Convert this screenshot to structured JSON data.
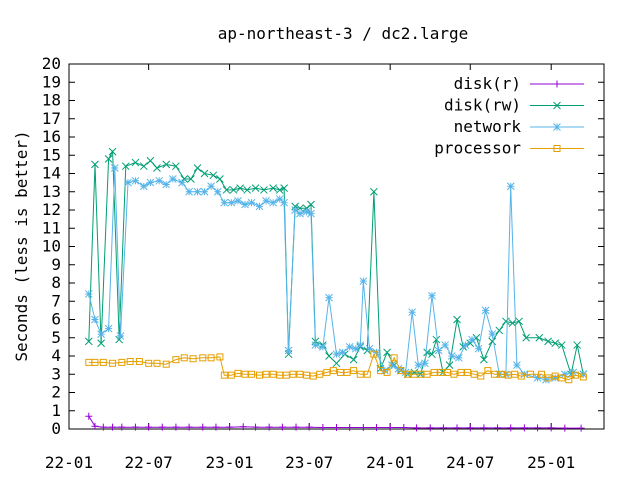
{
  "chart_data": {
    "type": "line",
    "title": "ap-northeast-3 / dc2.large",
    "ylabel": "Seconds (less is better)",
    "xlabel": "",
    "ylim": [
      0,
      20
    ],
    "xlim": [
      "2022-01-01",
      "2025-05-01"
    ],
    "yticks": [
      0,
      1,
      2,
      3,
      4,
      5,
      6,
      7,
      8,
      9,
      10,
      11,
      12,
      13,
      14,
      15,
      16,
      17,
      18,
      19,
      20
    ],
    "xticks": [
      "2022-01-01",
      "2022-07-01",
      "2023-01-01",
      "2023-07-01",
      "2024-01-01",
      "2024-07-01",
      "2025-01-01"
    ],
    "xtick_labels": [
      "22-01",
      "22-07",
      "23-01",
      "23-07",
      "24-01",
      "24-07",
      "25-01"
    ],
    "grid": false,
    "legend_position": "top-right",
    "series": [
      {
        "name": "disk(r)",
        "color": "#9400d3",
        "marker": "plus",
        "points": [
          [
            "2022-02-15",
            0.7
          ],
          [
            "2022-03-01",
            0.15
          ],
          [
            "2022-03-20",
            0.1
          ],
          [
            "2022-04-10",
            0.1
          ],
          [
            "2022-05-01",
            0.1
          ],
          [
            "2022-06-01",
            0.1
          ],
          [
            "2022-07-01",
            0.1
          ],
          [
            "2022-08-01",
            0.1
          ],
          [
            "2022-09-01",
            0.1
          ],
          [
            "2022-10-01",
            0.1
          ],
          [
            "2022-11-01",
            0.1
          ],
          [
            "2022-12-01",
            0.1
          ],
          [
            "2023-01-01",
            0.1
          ],
          [
            "2023-02-01",
            0.12
          ],
          [
            "2023-03-01",
            0.1
          ],
          [
            "2023-04-01",
            0.1
          ],
          [
            "2023-05-01",
            0.1
          ],
          [
            "2023-06-01",
            0.1
          ],
          [
            "2023-07-01",
            0.1
          ],
          [
            "2023-08-01",
            0.08
          ],
          [
            "2023-09-01",
            0.08
          ],
          [
            "2023-10-01",
            0.08
          ],
          [
            "2023-11-01",
            0.08
          ],
          [
            "2023-12-01",
            0.08
          ],
          [
            "2024-01-01",
            0.08
          ],
          [
            "2024-02-01",
            0.08
          ],
          [
            "2024-03-01",
            0.06
          ],
          [
            "2024-04-01",
            0.06
          ],
          [
            "2024-05-01",
            0.06
          ],
          [
            "2024-06-01",
            0.06
          ],
          [
            "2024-07-01",
            0.06
          ],
          [
            "2024-08-01",
            0.06
          ],
          [
            "2024-09-01",
            0.06
          ],
          [
            "2024-10-01",
            0.06
          ],
          [
            "2024-11-01",
            0.06
          ],
          [
            "2024-12-01",
            0.06
          ],
          [
            "2025-01-01",
            0.06
          ],
          [
            "2025-02-01",
            0.05
          ],
          [
            "2025-03-10",
            0.05
          ]
        ]
      },
      {
        "name": "disk(rw)",
        "color": "#009e73",
        "marker": "cross",
        "points": [
          [
            "2022-02-15",
            4.8
          ],
          [
            "2022-03-01",
            14.5
          ],
          [
            "2022-03-15",
            4.7
          ],
          [
            "2022-04-01",
            14.8
          ],
          [
            "2022-04-10",
            15.2
          ],
          [
            "2022-04-25",
            4.9
          ],
          [
            "2022-05-10",
            14.4
          ],
          [
            "2022-06-01",
            14.6
          ],
          [
            "2022-06-20",
            14.4
          ],
          [
            "2022-07-05",
            14.7
          ],
          [
            "2022-07-20",
            14.3
          ],
          [
            "2022-08-10",
            14.5
          ],
          [
            "2022-09-01",
            14.4
          ],
          [
            "2022-09-20",
            13.7
          ],
          [
            "2022-10-05",
            13.7
          ],
          [
            "2022-10-20",
            14.3
          ],
          [
            "2022-11-05",
            14.0
          ],
          [
            "2022-11-25",
            13.9
          ],
          [
            "2022-12-10",
            13.7
          ],
          [
            "2022-12-25",
            13.1
          ],
          [
            "2023-01-10",
            13.1
          ],
          [
            "2023-01-25",
            13.2
          ],
          [
            "2023-02-10",
            13.1
          ],
          [
            "2023-03-01",
            13.2
          ],
          [
            "2023-03-20",
            13.1
          ],
          [
            "2023-04-10",
            13.2
          ],
          [
            "2023-04-25",
            13.1
          ],
          [
            "2023-05-05",
            13.2
          ],
          [
            "2023-05-15",
            4.1
          ],
          [
            "2023-05-30",
            12.2
          ],
          [
            "2023-06-10",
            12.1
          ],
          [
            "2023-06-25",
            12.1
          ],
          [
            "2023-07-05",
            12.3
          ],
          [
            "2023-07-15",
            4.8
          ],
          [
            "2023-08-01",
            4.6
          ],
          [
            "2023-08-15",
            4.0
          ],
          [
            "2023-09-01",
            3.6
          ],
          [
            "2023-09-20",
            4.1
          ],
          [
            "2023-10-10",
            3.8
          ],
          [
            "2023-10-25",
            4.5
          ],
          [
            "2023-11-10",
            4.3
          ],
          [
            "2023-11-25",
            13.0
          ],
          [
            "2023-12-10",
            3.3
          ],
          [
            "2023-12-25",
            4.2
          ],
          [
            "2024-01-10",
            3.5
          ],
          [
            "2024-01-25",
            3.2
          ],
          [
            "2024-02-10",
            3.0
          ],
          [
            "2024-02-25",
            3.1
          ],
          [
            "2024-03-10",
            3.0
          ],
          [
            "2024-03-25",
            4.2
          ],
          [
            "2024-04-05",
            4.1
          ],
          [
            "2024-04-15",
            4.9
          ],
          [
            "2024-04-30",
            3.1
          ],
          [
            "2024-05-15",
            3.5
          ],
          [
            "2024-06-01",
            6.0
          ],
          [
            "2024-06-15",
            4.5
          ],
          [
            "2024-07-01",
            4.7
          ],
          [
            "2024-07-15",
            5.0
          ],
          [
            "2024-08-01",
            3.8
          ],
          [
            "2024-08-20",
            4.8
          ],
          [
            "2024-09-05",
            5.4
          ],
          [
            "2024-09-20",
            5.9
          ],
          [
            "2024-10-05",
            5.8
          ],
          [
            "2024-10-20",
            5.9
          ],
          [
            "2024-11-05",
            5.0
          ],
          [
            "2024-12-05",
            5.0
          ],
          [
            "2024-12-25",
            4.8
          ],
          [
            "2025-01-10",
            4.7
          ],
          [
            "2025-01-25",
            4.6
          ],
          [
            "2025-02-15",
            3.0
          ],
          [
            "2025-03-01",
            4.6
          ],
          [
            "2025-03-15",
            3.0
          ]
        ]
      },
      {
        "name": "network",
        "color": "#56b4e9",
        "marker": "star",
        "points": [
          [
            "2022-02-15",
            7.4
          ],
          [
            "2022-03-01",
            6.0
          ],
          [
            "2022-03-15",
            5.2
          ],
          [
            "2022-04-01",
            5.5
          ],
          [
            "2022-04-15",
            14.3
          ],
          [
            "2022-04-28",
            5.1
          ],
          [
            "2022-05-15",
            13.5
          ],
          [
            "2022-06-01",
            13.6
          ],
          [
            "2022-06-20",
            13.3
          ],
          [
            "2022-07-05",
            13.5
          ],
          [
            "2022-07-25",
            13.6
          ],
          [
            "2022-08-10",
            13.4
          ],
          [
            "2022-08-25",
            13.7
          ],
          [
            "2022-09-15",
            13.5
          ],
          [
            "2022-10-01",
            13.0
          ],
          [
            "2022-10-20",
            13.0
          ],
          [
            "2022-11-05",
            13.0
          ],
          [
            "2022-11-20",
            13.3
          ],
          [
            "2022-12-05",
            13.0
          ],
          [
            "2022-12-20",
            12.4
          ],
          [
            "2023-01-05",
            12.4
          ],
          [
            "2023-01-20",
            12.5
          ],
          [
            "2023-02-05",
            12.3
          ],
          [
            "2023-02-20",
            12.4
          ],
          [
            "2023-03-10",
            12.2
          ],
          [
            "2023-03-25",
            12.5
          ],
          [
            "2023-04-10",
            12.4
          ],
          [
            "2023-04-25",
            12.6
          ],
          [
            "2023-05-05",
            12.4
          ],
          [
            "2023-05-15",
            4.3
          ],
          [
            "2023-05-30",
            12.0
          ],
          [
            "2023-06-10",
            11.8
          ],
          [
            "2023-06-25",
            11.9
          ],
          [
            "2023-07-05",
            11.8
          ],
          [
            "2023-07-15",
            4.6
          ],
          [
            "2023-08-01",
            4.5
          ],
          [
            "2023-08-15",
            7.2
          ],
          [
            "2023-09-01",
            4.1
          ],
          [
            "2023-09-15",
            4.2
          ],
          [
            "2023-10-01",
            4.5
          ],
          [
            "2023-10-15",
            4.4
          ],
          [
            "2023-10-25",
            4.6
          ],
          [
            "2023-11-01",
            8.1
          ],
          [
            "2023-11-15",
            4.4
          ],
          [
            "2023-12-01",
            4.2
          ],
          [
            "2023-12-20",
            3.2
          ],
          [
            "2024-01-05",
            3.5
          ],
          [
            "2024-01-20",
            3.3
          ],
          [
            "2024-02-05",
            3.1
          ],
          [
            "2024-02-20",
            6.4
          ],
          [
            "2024-03-05",
            3.5
          ],
          [
            "2024-03-20",
            3.6
          ],
          [
            "2024-04-05",
            7.3
          ],
          [
            "2024-04-20",
            4.3
          ],
          [
            "2024-05-05",
            4.6
          ],
          [
            "2024-05-20",
            4.0
          ],
          [
            "2024-06-05",
            3.9
          ],
          [
            "2024-06-20",
            4.6
          ],
          [
            "2024-07-05",
            4.9
          ],
          [
            "2024-07-20",
            4.4
          ],
          [
            "2024-08-05",
            6.5
          ],
          [
            "2024-08-20",
            5.2
          ],
          [
            "2024-09-05",
            3.0
          ],
          [
            "2024-09-20",
            3.0
          ],
          [
            "2024-10-01",
            13.3
          ],
          [
            "2024-10-15",
            3.5
          ],
          [
            "2024-11-01",
            3.0
          ],
          [
            "2024-12-01",
            2.8
          ],
          [
            "2024-12-20",
            2.7
          ],
          [
            "2025-01-10",
            2.8
          ],
          [
            "2025-02-01",
            3.0
          ],
          [
            "2025-02-20",
            3.1
          ],
          [
            "2025-03-15",
            3.0
          ]
        ]
      },
      {
        "name": "processor",
        "color": "#e69f00",
        "marker": "square",
        "points": [
          [
            "2022-02-15",
            3.65
          ],
          [
            "2022-03-01",
            3.65
          ],
          [
            "2022-03-20",
            3.65
          ],
          [
            "2022-04-10",
            3.6
          ],
          [
            "2022-05-01",
            3.65
          ],
          [
            "2022-05-20",
            3.7
          ],
          [
            "2022-06-10",
            3.7
          ],
          [
            "2022-07-01",
            3.6
          ],
          [
            "2022-07-20",
            3.6
          ],
          [
            "2022-08-10",
            3.55
          ],
          [
            "2022-09-01",
            3.8
          ],
          [
            "2022-09-20",
            3.9
          ],
          [
            "2022-10-10",
            3.85
          ],
          [
            "2022-11-01",
            3.9
          ],
          [
            "2022-11-20",
            3.9
          ],
          [
            "2022-12-10",
            3.95
          ],
          [
            "2022-12-20",
            2.95
          ],
          [
            "2023-01-05",
            2.95
          ],
          [
            "2023-01-20",
            3.05
          ],
          [
            "2023-02-05",
            3.0
          ],
          [
            "2023-02-20",
            3.0
          ],
          [
            "2023-03-10",
            2.95
          ],
          [
            "2023-03-25",
            3.0
          ],
          [
            "2023-04-10",
            3.0
          ],
          [
            "2023-04-25",
            2.95
          ],
          [
            "2023-05-10",
            2.95
          ],
          [
            "2023-05-25",
            3.0
          ],
          [
            "2023-06-10",
            3.0
          ],
          [
            "2023-06-25",
            2.95
          ],
          [
            "2023-07-10",
            2.9
          ],
          [
            "2023-07-25",
            3.0
          ],
          [
            "2023-08-10",
            3.1
          ],
          [
            "2023-08-25",
            3.2
          ],
          [
            "2023-09-10",
            3.1
          ],
          [
            "2023-09-25",
            3.1
          ],
          [
            "2023-10-10",
            3.2
          ],
          [
            "2023-10-25",
            3.0
          ],
          [
            "2023-11-10",
            3.0
          ],
          [
            "2023-11-25",
            4.1
          ],
          [
            "2023-12-10",
            3.2
          ],
          [
            "2023-12-25",
            3.1
          ],
          [
            "2024-01-10",
            3.9
          ],
          [
            "2024-01-25",
            3.2
          ],
          [
            "2024-02-10",
            3.0
          ],
          [
            "2024-02-25",
            3.0
          ],
          [
            "2024-03-10",
            3.0
          ],
          [
            "2024-03-25",
            3.0
          ],
          [
            "2024-04-10",
            3.1
          ],
          [
            "2024-04-25",
            3.1
          ],
          [
            "2024-05-10",
            3.1
          ],
          [
            "2024-05-25",
            3.0
          ],
          [
            "2024-06-10",
            3.1
          ],
          [
            "2024-06-25",
            3.1
          ],
          [
            "2024-07-10",
            3.0
          ],
          [
            "2024-07-25",
            2.9
          ],
          [
            "2024-08-10",
            3.2
          ],
          [
            "2024-08-25",
            3.0
          ],
          [
            "2024-09-10",
            3.0
          ],
          [
            "2024-09-25",
            2.95
          ],
          [
            "2024-10-10",
            3.0
          ],
          [
            "2024-10-25",
            2.9
          ],
          [
            "2024-11-15",
            3.0
          ],
          [
            "2024-12-10",
            3.0
          ],
          [
            "2024-12-25",
            2.8
          ],
          [
            "2025-01-10",
            2.9
          ],
          [
            "2025-01-25",
            2.8
          ],
          [
            "2025-02-10",
            2.7
          ],
          [
            "2025-02-25",
            2.95
          ],
          [
            "2025-03-15",
            2.85
          ]
        ]
      }
    ]
  }
}
